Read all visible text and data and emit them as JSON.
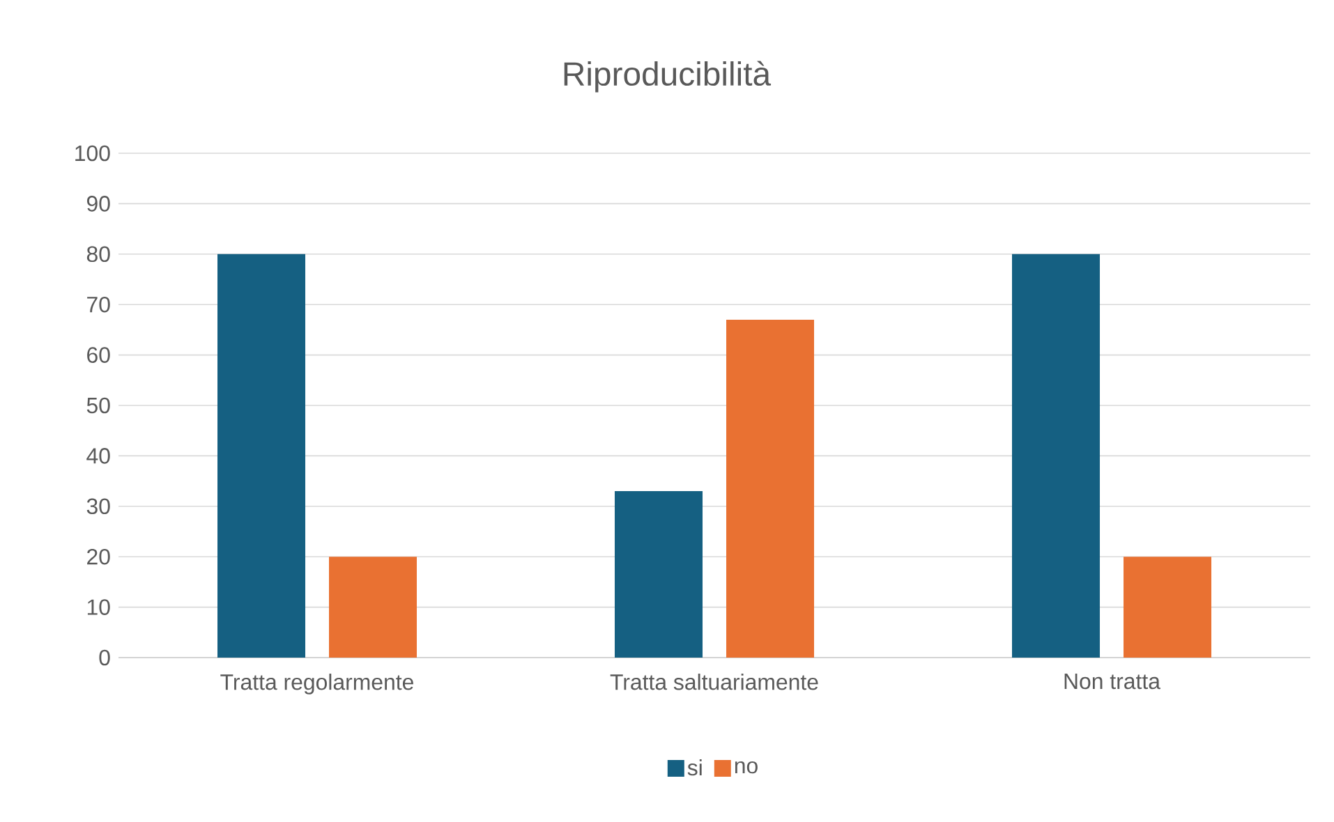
{
  "chart_data": {
    "type": "bar",
    "title": "Riproducibilità",
    "categories": [
      "Tratta regolarmente",
      "Tratta saltuariamente",
      "Non tratta"
    ],
    "series": [
      {
        "name": "si",
        "color": "#156082",
        "values": [
          80,
          33,
          80
        ]
      },
      {
        "name": "no",
        "color": "#e97132",
        "values": [
          20,
          67,
          20
        ]
      }
    ],
    "ylim": [
      0,
      100
    ],
    "yticks": [
      0,
      10,
      20,
      30,
      40,
      50,
      60,
      70,
      80,
      90,
      100
    ],
    "grid": "y",
    "legend": "bottom"
  }
}
